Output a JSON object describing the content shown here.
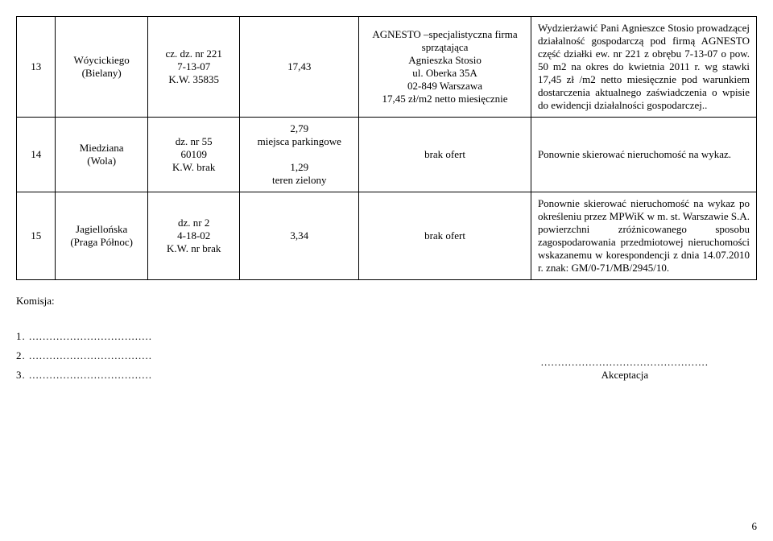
{
  "rows": [
    {
      "num": "13",
      "location": "Wóycickiego\n(Bielany)",
      "ref": "cz. dz. nr 221\n7-13-07\nK.W. 35835",
      "area": "17,43",
      "company": "AGNESTO –specjalistyczna firma sprzątająca\nAgnieszka Stosio\nul. Oberka 35A\n02-849 Warszawa\n17,45 zł/m2 netto miesięcznie",
      "notes": "Wydzierżawić Pani Agnieszce Stosio prowadzącej działalność gospodarczą pod firmą AGNESTO część działki ew. nr 221 z obrębu 7-13-07 o pow. 50 m2 na okres do kwietnia 2011 r.  wg stawki 17,45 zł /m2 netto miesięcznie pod warunkiem dostarczenia aktualnego zaświadczenia o wpisie do ewidencji działalności gospodarczej.."
    },
    {
      "num": "14",
      "location": "Miedziana\n(Wola)",
      "ref": "dz. nr 55\n60109\nK.W. brak",
      "area": "2,79\nmiejsca parkingowe\n\n1,29\nteren zielony",
      "company": "brak ofert",
      "notes": "Ponownie skierować nieruchomość na wykaz."
    },
    {
      "num": "15",
      "location": "Jagiellońska\n(Praga Północ)",
      "ref": "dz. nr 2\n4-18-02\nK.W. nr brak",
      "area": "3,34",
      "company": "brak ofert",
      "notes": "Ponownie skierować nieruchomość na wykaz po określeniu przez MPWiK w m. st. Warszawie S.A. powierzchni zróżnicowanego sposobu zagospodarowania przedmiotowej nieruchomości wskazanemu w korespondencji z dnia 14.07.2010 r. znak: GM/0-71/MB/2945/10."
    }
  ],
  "komisja_label": "Komisja:",
  "sig_items": [
    "1. ....................................",
    "2. ....................................",
    "3. ...................................."
  ],
  "akceptacja_dots": ".................................................",
  "akceptacja_label": "Akceptacja",
  "page_number": "6"
}
